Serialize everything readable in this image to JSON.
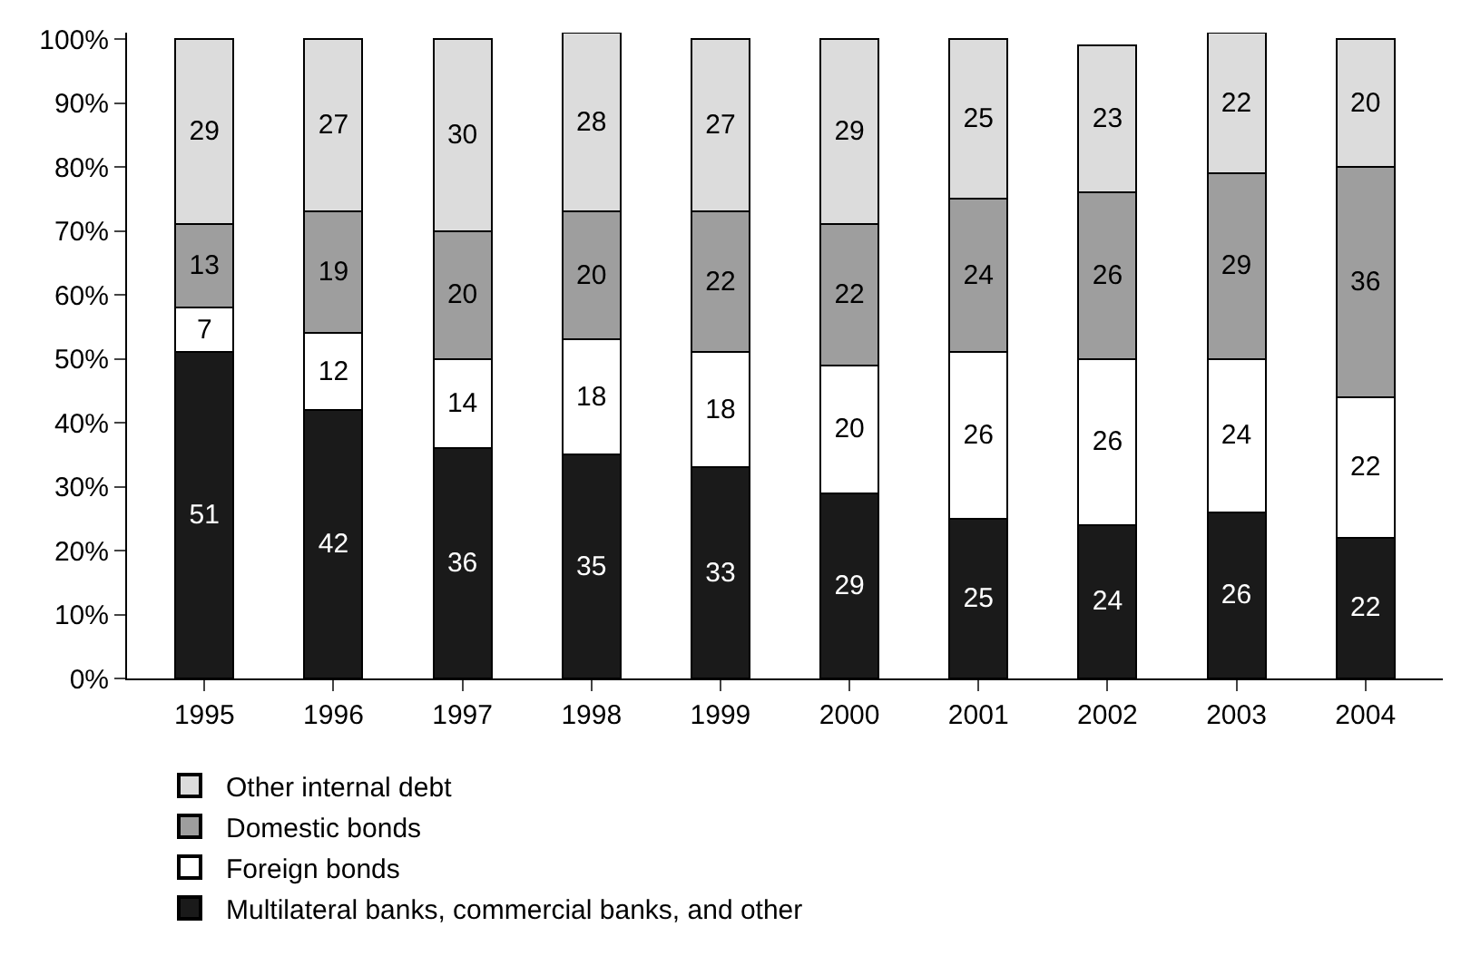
{
  "chart_data": {
    "type": "bar",
    "stacked": true,
    "data_labels": true,
    "legend": "bottom",
    "grid": false,
    "categories": [
      "1995",
      "1996",
      "1997",
      "1998",
      "1999",
      "2000",
      "2001",
      "2002",
      "2003",
      "2004"
    ],
    "series": [
      {
        "name": "Multilateral banks, commercial banks, and other",
        "color": "#1a1a1a",
        "values": [
          51,
          42,
          36,
          35,
          33,
          29,
          25,
          24,
          26,
          22
        ]
      },
      {
        "name": "Foreign bonds",
        "color": "#ffffff",
        "values": [
          7,
          12,
          14,
          18,
          18,
          20,
          26,
          26,
          24,
          22
        ]
      },
      {
        "name": "Domestic bonds",
        "color": "#9e9e9e",
        "values": [
          13,
          19,
          20,
          20,
          22,
          22,
          24,
          26,
          29,
          36
        ]
      },
      {
        "name": "Other internal debt",
        "color": "#dcdcdc",
        "values": [
          29,
          27,
          30,
          28,
          27,
          29,
          25,
          23,
          22,
          20
        ]
      }
    ],
    "ylim": [
      0,
      101
    ],
    "yticks": [
      {
        "value": 0,
        "label": "0%"
      },
      {
        "value": 10,
        "label": "10%"
      },
      {
        "value": 20,
        "label": "20%"
      },
      {
        "value": 30,
        "label": "30%"
      },
      {
        "value": 40,
        "label": "40%"
      },
      {
        "value": 50,
        "label": "50%"
      },
      {
        "value": 60,
        "label": "60%"
      },
      {
        "value": 70,
        "label": "70%"
      },
      {
        "value": 80,
        "label": "80%"
      },
      {
        "value": 90,
        "label": "90%"
      },
      {
        "value": 100,
        "label": "100%"
      }
    ]
  }
}
